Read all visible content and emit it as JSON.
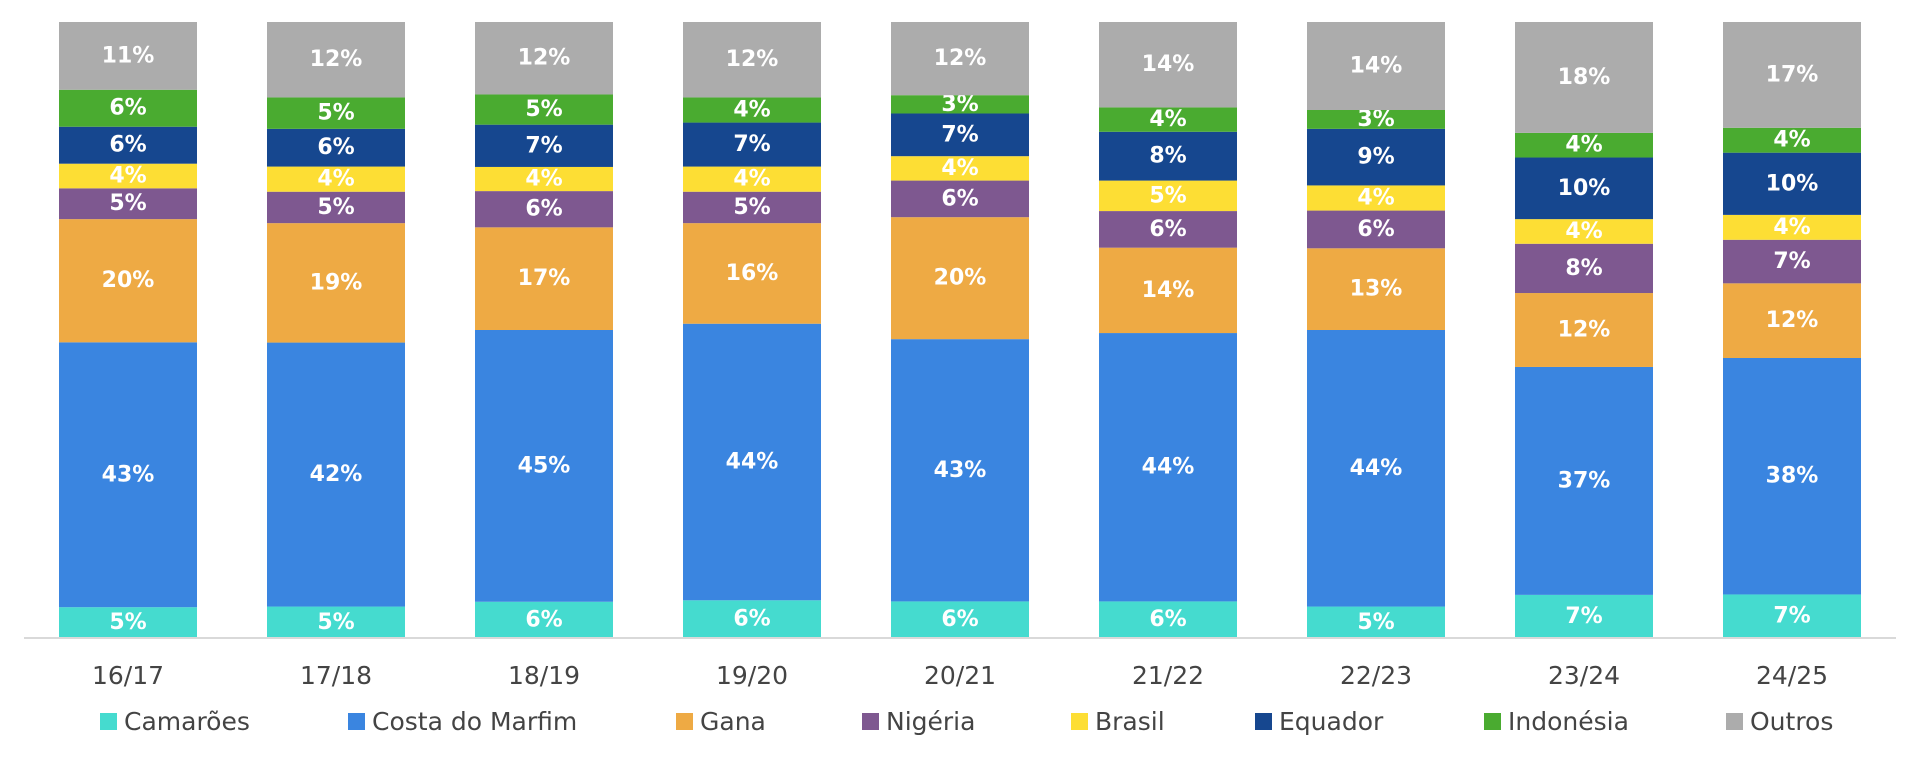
{
  "chart_data": {
    "type": "bar",
    "stacked": true,
    "normalized": true,
    "categories": [
      "16/17",
      "17/18",
      "18/19",
      "19/20",
      "20/21",
      "21/22",
      "22/23",
      "23/24",
      "24/25"
    ],
    "series": [
      {
        "name": "Camarões",
        "color": "#45dbcf",
        "values": [
          5,
          5,
          6,
          6,
          6,
          6,
          5,
          7,
          7
        ],
        "labels": [
          "5%",
          "5%",
          "6%",
          "6%",
          "6%",
          "6%",
          "5%",
          "7%",
          "7%"
        ]
      },
      {
        "name": "Costa do Marfim",
        "color": "#3a85e0",
        "values": [
          43,
          42,
          45,
          44,
          43,
          44,
          44,
          37,
          38
        ],
        "labels": [
          "43%",
          "42%",
          "45%",
          "44%",
          "43%",
          "44%",
          "44%",
          "37%",
          "38%"
        ]
      },
      {
        "name": "Gana",
        "color": "#eeaa44",
        "values": [
          20,
          19,
          17,
          16,
          20,
          14,
          13,
          12,
          12
        ],
        "labels": [
          "20%",
          "19%",
          "17%",
          "16%",
          "20%",
          "14%",
          "13%",
          "12%",
          "12%"
        ]
      },
      {
        "name": "Nigéria",
        "color": "#7e5890",
        "values": [
          5,
          5,
          6,
          5,
          6,
          6,
          6,
          8,
          7
        ],
        "labels": [
          "5%",
          "5%",
          "6%",
          "5%",
          "6%",
          "6%",
          "6%",
          "8%",
          "7%"
        ]
      },
      {
        "name": "Brasil",
        "color": "#fdde34",
        "values": [
          4,
          4,
          4,
          4,
          4,
          5,
          4,
          4,
          4
        ],
        "labels": [
          "4%",
          "4%",
          "4%",
          "4%",
          "4%",
          "5%",
          "4%",
          "4%",
          "4%"
        ]
      },
      {
        "name": "Equador",
        "color": "#16478f",
        "values": [
          6,
          6,
          7,
          7,
          7,
          8,
          9,
          10,
          10
        ],
        "labels": [
          "6%",
          "6%",
          "7%",
          "7%",
          "7%",
          "8%",
          "9%",
          "10%",
          "10%"
        ]
      },
      {
        "name": "Indonésia",
        "color": "#4aab30",
        "values": [
          6,
          5,
          5,
          4,
          3,
          4,
          3,
          4,
          4
        ],
        "labels": [
          "6%",
          "5%",
          "5%",
          "4%",
          "3%",
          "4%",
          "3%",
          "4%",
          "4%"
        ]
      },
      {
        "name": "Outros",
        "color": "#acacac",
        "values": [
          11,
          12,
          12,
          12,
          12,
          14,
          14,
          18,
          17
        ],
        "labels": [
          "11%",
          "12%",
          "12%",
          "12%",
          "12%",
          "14%",
          "14%",
          "18%",
          "17%"
        ]
      }
    ],
    "ylim": [
      0,
      100
    ],
    "grid": false,
    "legend_position": "bottom",
    "title": "",
    "xlabel": "",
    "ylabel": ""
  }
}
